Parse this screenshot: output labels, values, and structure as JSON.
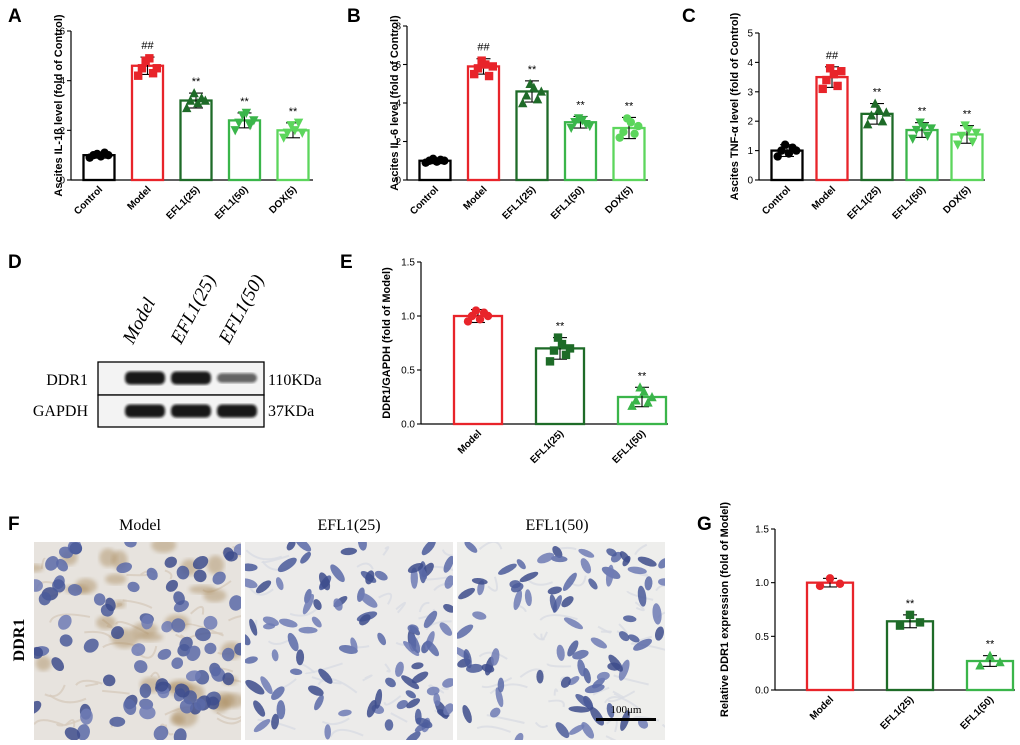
{
  "panels": {
    "A": "A",
    "B": "B",
    "C": "C",
    "D": "D",
    "E": "E",
    "F": "F",
    "G": "G"
  },
  "chart_data": [
    {
      "id": "A",
      "type": "bar",
      "title": "",
      "ylabel": "Ascites IL-1β level (fold of Control)",
      "categories": [
        "Control",
        "Model",
        "EFL1(25)",
        "EFL1(50)",
        "DOX(5)"
      ],
      "colors": [
        "#000000",
        "#e8242a",
        "#1e6b28",
        "#3ab54a",
        "#5cd65c"
      ],
      "markers": [
        "circle",
        "square",
        "triangle",
        "triangle-down",
        "triangle-down"
      ],
      "values": [
        1.0,
        4.6,
        3.2,
        2.4,
        2.0
      ],
      "errors": [
        0.12,
        0.35,
        0.3,
        0.3,
        0.3
      ],
      "points": [
        [
          0.9,
          1.0,
          1.05,
          0.95,
          1.1,
          1.0
        ],
        [
          4.2,
          4.5,
          4.8,
          4.9,
          4.3,
          4.5
        ],
        [
          2.9,
          3.2,
          3.5,
          3.1,
          3.3,
          3.2
        ],
        [
          2.0,
          2.3,
          2.6,
          2.7,
          2.2,
          2.4
        ],
        [
          1.7,
          1.9,
          2.2,
          2.0,
          2.3,
          1.9
        ]
      ],
      "significance": [
        "",
        "##",
        "**",
        "**",
        "**"
      ],
      "ylim": [
        0,
        6
      ],
      "yticks": [
        0,
        2,
        4,
        6
      ]
    },
    {
      "id": "B",
      "type": "bar",
      "title": "",
      "ylabel": "Ascites IL-6 level (fold of Control)",
      "categories": [
        "Control",
        "Model",
        "EFL1(25)",
        "EFL1(50)",
        "DOX(5)"
      ],
      "colors": [
        "#000000",
        "#e8242a",
        "#1e6b28",
        "#3ab54a",
        "#5cd65c"
      ],
      "markers": [
        "circle",
        "square",
        "triangle",
        "triangle-down",
        "circle"
      ],
      "values": [
        1.0,
        5.9,
        4.6,
        3.0,
        2.7
      ],
      "errors": [
        0.15,
        0.4,
        0.55,
        0.3,
        0.55
      ],
      "points": [
        [
          0.9,
          1.0,
          1.1,
          0.95,
          1.05,
          1.0
        ],
        [
          5.5,
          5.8,
          6.2,
          6.0,
          5.4,
          5.9
        ],
        [
          4.0,
          4.4,
          5.0,
          4.8,
          4.2,
          4.6
        ],
        [
          2.7,
          3.0,
          3.2,
          3.1,
          2.9,
          2.8
        ],
        [
          2.2,
          2.5,
          3.2,
          3.0,
          2.4,
          2.8
        ]
      ],
      "significance": [
        "",
        "##",
        "**",
        "**",
        "**"
      ],
      "ylim": [
        0,
        8
      ],
      "yticks": [
        0,
        2,
        4,
        6,
        8
      ]
    },
    {
      "id": "C",
      "type": "bar",
      "title": "",
      "ylabel": "Ascites TNF-α level (fold of Control)",
      "categories": [
        "Control",
        "Model",
        "EFL1(25)",
        "EFL1(50)",
        "DOX(5)"
      ],
      "colors": [
        "#000000",
        "#e8242a",
        "#1e6b28",
        "#3ab54a",
        "#5cd65c"
      ],
      "markers": [
        "circle",
        "square",
        "triangle",
        "triangle-down",
        "triangle-down"
      ],
      "values": [
        1.0,
        3.5,
        2.25,
        1.7,
        1.55
      ],
      "errors": [
        0.2,
        0.35,
        0.35,
        0.25,
        0.3
      ],
      "points": [
        [
          0.8,
          1.0,
          1.2,
          0.9,
          1.1,
          1.0
        ],
        [
          3.1,
          3.4,
          3.8,
          3.6,
          3.2,
          3.7
        ],
        [
          1.9,
          2.2,
          2.6,
          2.4,
          2.0,
          2.3
        ],
        [
          1.4,
          1.7,
          1.95,
          1.8,
          1.5,
          1.75
        ],
        [
          1.2,
          1.5,
          1.85,
          1.7,
          1.3,
          1.6
        ]
      ],
      "significance": [
        "",
        "##",
        "**",
        "**",
        "**"
      ],
      "ylim": [
        0,
        5
      ],
      "yticks": [
        0,
        1,
        2,
        3,
        4,
        5
      ]
    },
    {
      "id": "E",
      "type": "bar",
      "title": "",
      "ylabel": "DDR1/GAPDH (fold of Model)",
      "categories": [
        "Model",
        "EFL1(25)",
        "EFL1(50)"
      ],
      "colors": [
        "#e8242a",
        "#1e6b28",
        "#3ab54a"
      ],
      "markers": [
        "circle",
        "square",
        "triangle"
      ],
      "values": [
        1.0,
        0.7,
        0.25
      ],
      "errors": [
        0.06,
        0.1,
        0.09
      ],
      "points": [
        [
          0.95,
          1.0,
          1.05,
          0.97,
          1.03,
          1.0
        ],
        [
          0.58,
          0.68,
          0.8,
          0.74,
          0.64,
          0.7
        ],
        [
          0.17,
          0.22,
          0.34,
          0.3,
          0.2,
          0.25
        ]
      ],
      "significance": [
        "",
        "**",
        "**"
      ],
      "ylim": [
        0,
        1.5
      ],
      "yticks": [
        0,
        0.5,
        1.0,
        1.5
      ],
      "ytick_labels": [
        "0.0",
        "0.5",
        "1.0",
        "1.5"
      ]
    },
    {
      "id": "G",
      "type": "bar",
      "title": "",
      "ylabel": "Relative DDR1 expression (fold of Model)",
      "categories": [
        "Model",
        "EFL1(25)",
        "EFL1(50)"
      ],
      "colors": [
        "#e8242a",
        "#1e6b28",
        "#3ab54a"
      ],
      "markers": [
        "circle",
        "square",
        "triangle"
      ],
      "values": [
        1.0,
        0.64,
        0.27
      ],
      "errors": [
        0.04,
        0.06,
        0.05
      ],
      "points": [
        [
          0.97,
          1.04,
          0.99
        ],
        [
          0.6,
          0.7,
          0.63
        ],
        [
          0.23,
          0.32,
          0.26
        ]
      ],
      "significance": [
        "",
        "**",
        "**"
      ],
      "ylim": [
        0,
        1.5
      ],
      "yticks": [
        0,
        0.5,
        1.0,
        1.5
      ],
      "ytick_labels": [
        "0.0",
        "0.5",
        "1.0",
        "1.5"
      ]
    }
  ],
  "blot": {
    "lanes": [
      "Model",
      "EFL1(25)",
      "EFL1(50)"
    ],
    "rows": [
      {
        "protein": "DDR1",
        "size": "110KDa",
        "intensity": [
          1.0,
          1.0,
          0.45
        ]
      },
      {
        "protein": "GAPDH",
        "size": "37KDa",
        "intensity": [
          1.0,
          1.0,
          1.0
        ]
      }
    ]
  },
  "histology": {
    "side_label": "DDR1",
    "panels": [
      "Model",
      "EFL1(25)",
      "EFL1(50)"
    ],
    "scale_bar": "100μm"
  }
}
